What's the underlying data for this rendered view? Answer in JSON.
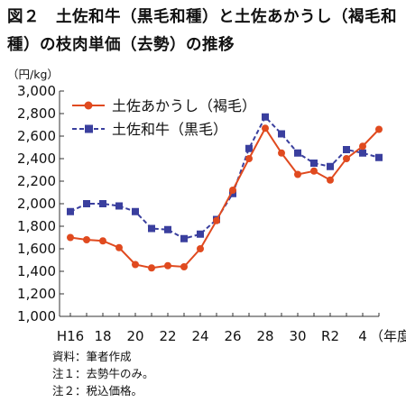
{
  "title": "図２　土佐和牛（黒毛和種）と土佐あかうし（褐毛和種）の枝肉単価（去勢）の推移",
  "notes": [
    "資料：筆者作成",
    "注１：去勢牛のみ。",
    "注２：税込価格。"
  ],
  "colors": {
    "red": "#e04a1f",
    "blue": "#3a3f9e",
    "axis": "#333333"
  },
  "chart_data": {
    "type": "line",
    "title": "図２　土佐和牛（黒毛和種）と土佐あかうし（褐毛和種）の枝肉単価（去勢）の推移",
    "ylabel": "（円/kg）",
    "xlabel": "（年度）",
    "ylim": [
      1000,
      3000
    ],
    "yticks": [
      "1,000",
      "1,200",
      "1,400",
      "1,600",
      "1,800",
      "2,000",
      "2,200",
      "2,400",
      "2,600",
      "2,800",
      "3,000"
    ],
    "xtick_labels": [
      "H16",
      "18",
      "20",
      "22",
      "24",
      "26",
      "28",
      "30",
      "R2",
      "4"
    ],
    "x": [
      "H16",
      "H17",
      "H18",
      "H19",
      "H20",
      "H21",
      "H22",
      "H23",
      "H24",
      "H25",
      "H26",
      "H27",
      "H28",
      "H29",
      "H30",
      "R1",
      "R2",
      "R3",
      "R4",
      "R5"
    ],
    "legend_position": "top-left",
    "grid": false,
    "series": [
      {
        "name": "土佐あかうし（褐毛）",
        "marker": "circle",
        "color": "#e04a1f",
        "values": [
          1700,
          1680,
          1670,
          1610,
          1460,
          1430,
          1450,
          1440,
          1600,
          1850,
          2120,
          2400,
          2670,
          2450,
          2260,
          2290,
          2210,
          2400,
          2510,
          2660
        ]
      },
      {
        "name": "土佐和牛（黒毛）",
        "marker": "square",
        "color": "#3a3f9e",
        "values": [
          1930,
          2000,
          2000,
          1980,
          1930,
          1780,
          1770,
          1690,
          1730,
          1860,
          2090,
          2490,
          2770,
          2620,
          2450,
          2360,
          2330,
          2480,
          2450,
          2410
        ]
      }
    ]
  }
}
